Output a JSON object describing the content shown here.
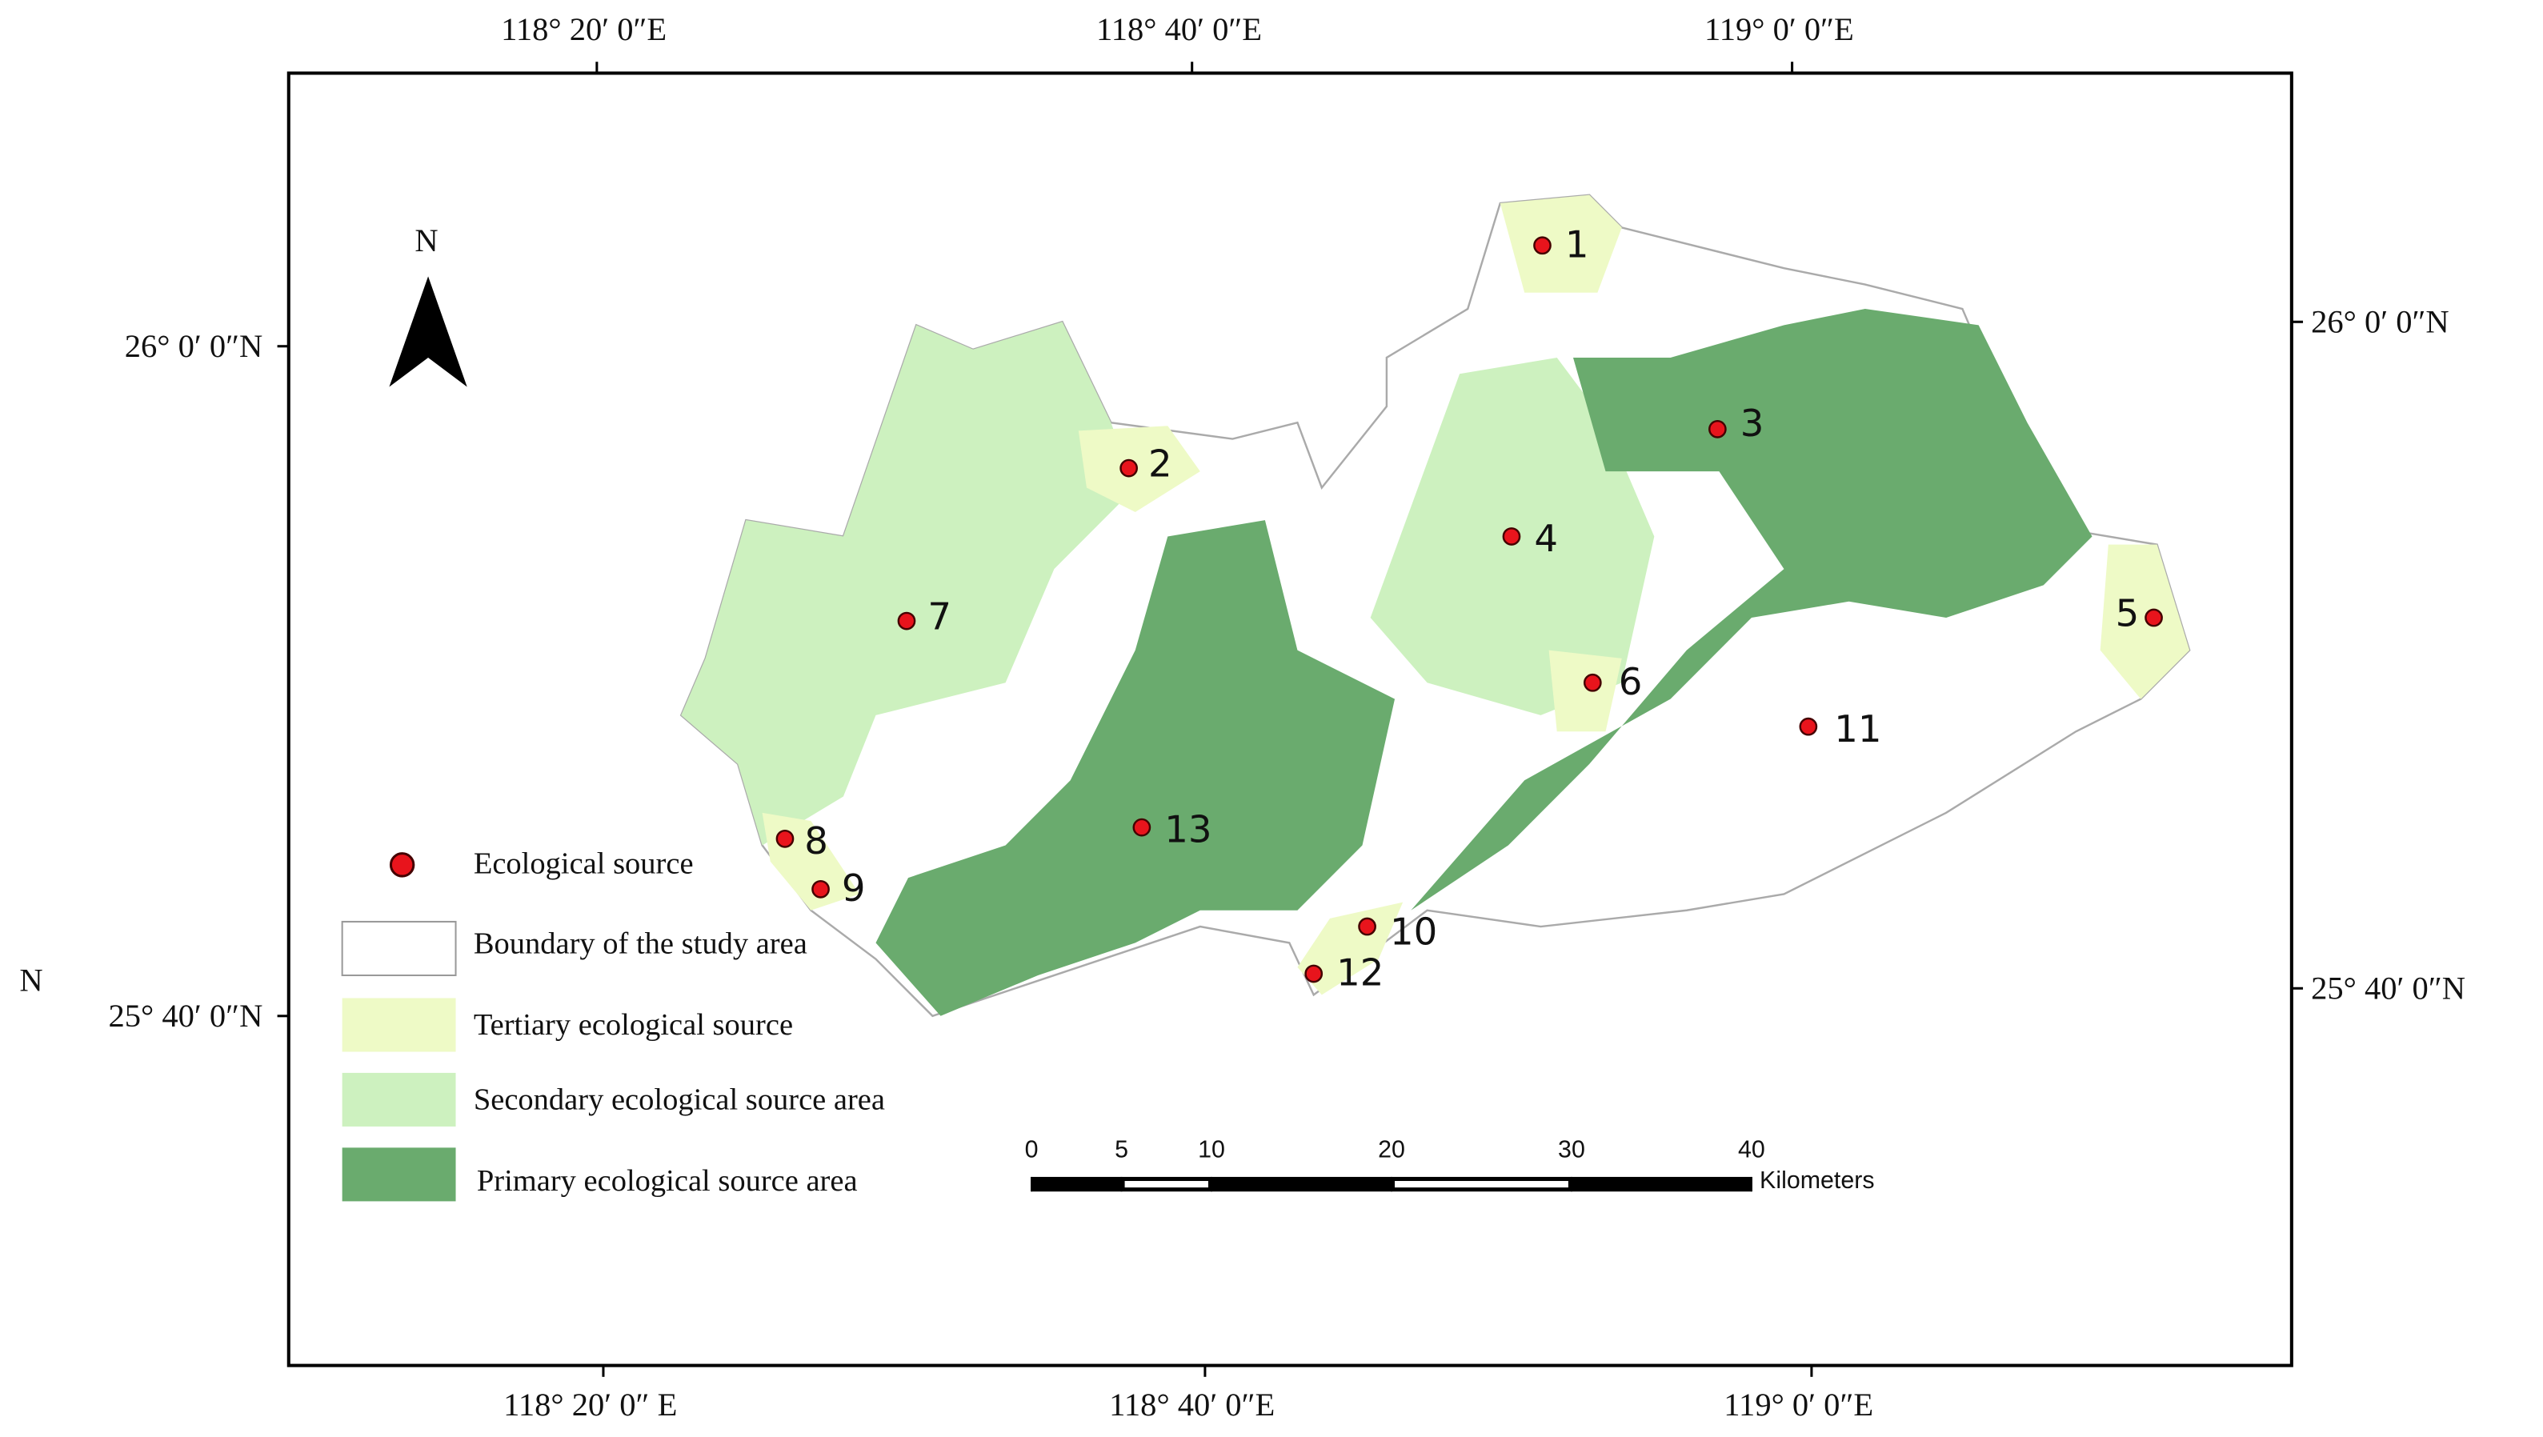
{
  "coordinates": {
    "top": [
      "118° 20′ 0″E",
      "118° 40′ 0″E",
      "119° 0′ 0″E"
    ],
    "bottom": [
      "118° 20′ 0″ E",
      "118° 40′ 0″E",
      "119° 0′ 0″E"
    ],
    "left": [
      "26° 0′ 0″N",
      "25° 40′ 0″N"
    ],
    "left_extra": "N",
    "right": [
      "26° 0′ 0″N",
      "25° 40′ 0″N"
    ]
  },
  "north_arrow": "N",
  "legend": [
    "Ecological source",
    "Boundary of the study area",
    "Tertiary ecological source",
    "Secondary ecological source area",
    "Primary ecological source area"
  ],
  "scale_bar": {
    "ticks": [
      0,
      5,
      10,
      20,
      30,
      40
    ],
    "unit": "Kilometers"
  },
  "sources": [
    "1",
    "2",
    "3",
    "4",
    "5",
    "6",
    "7",
    "8",
    "9",
    "10",
    "11",
    "12",
    "13"
  ]
}
